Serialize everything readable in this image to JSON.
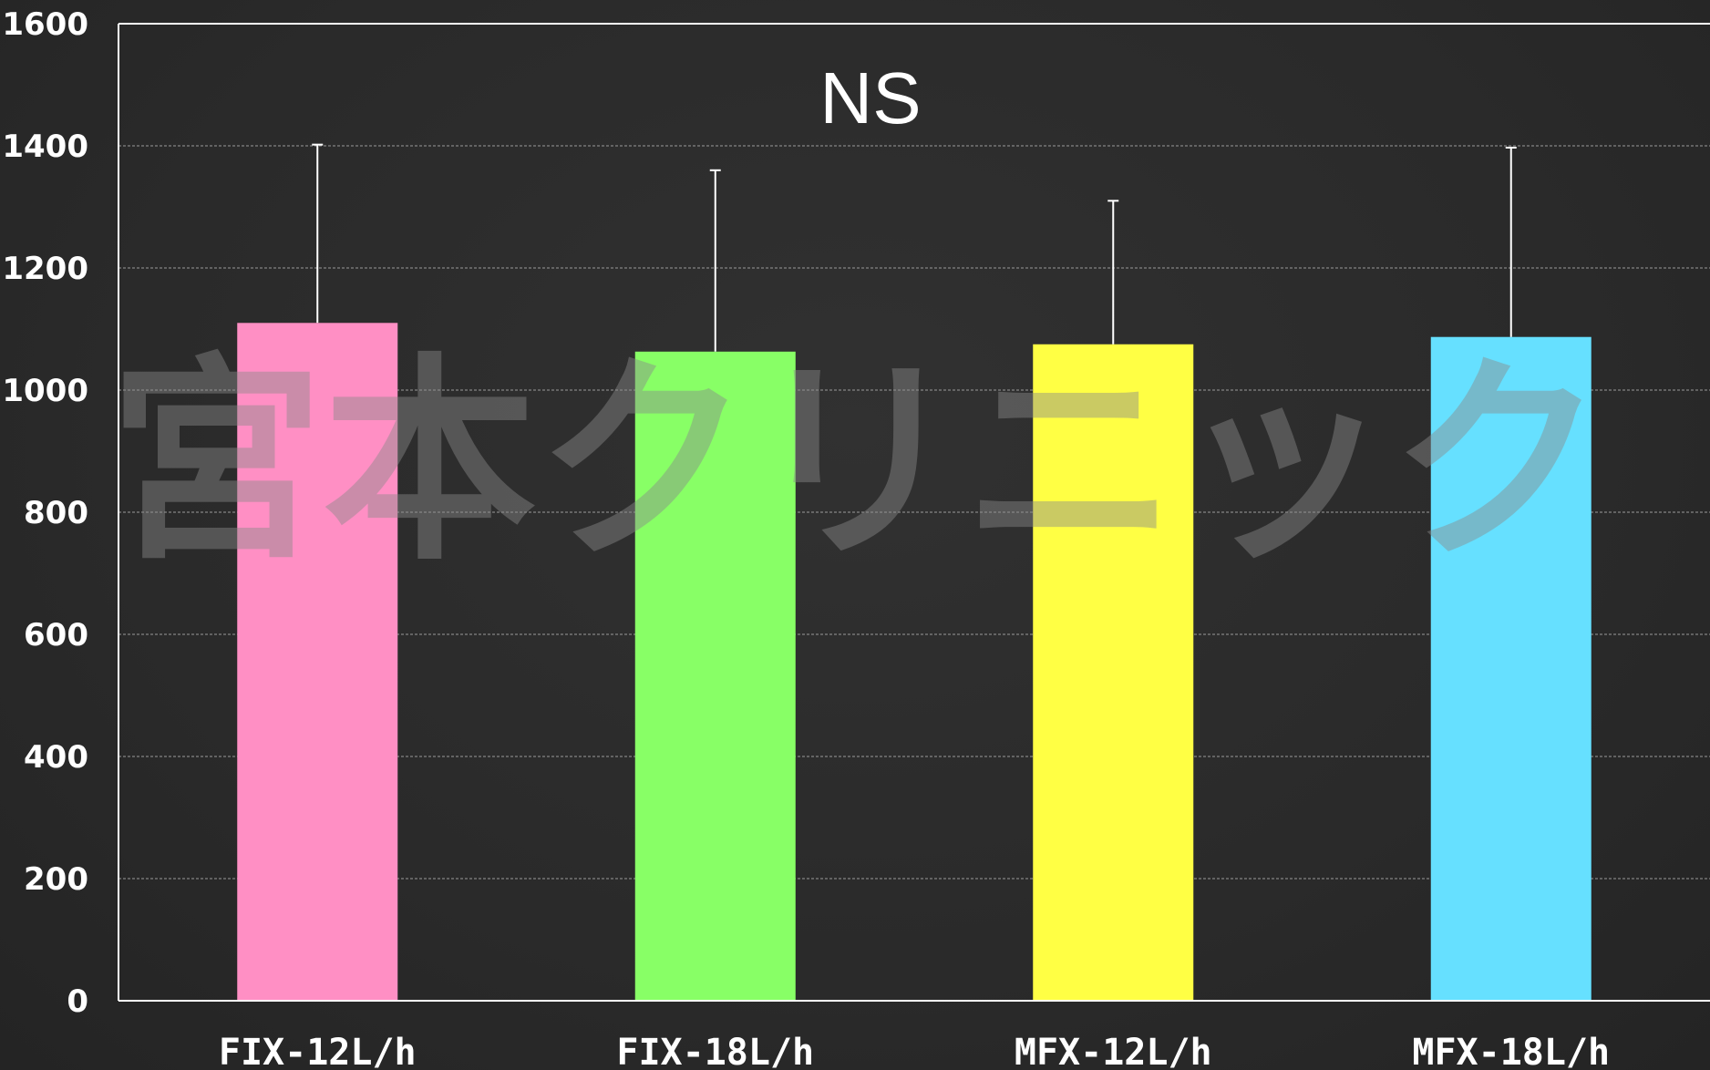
{
  "chart_data": {
    "type": "bar",
    "title": "",
    "xlabel": "",
    "ylabel": "",
    "categories": [
      "FIX-12L/h",
      "FIX-18L/h",
      "MFX-12L/h",
      "MFX-18L/h"
    ],
    "values": [
      1110,
      1063,
      1075,
      1087
    ],
    "error_upper": [
      1402,
      1360,
      1310,
      1397
    ],
    "colors": [
      "#ff8fc4",
      "#88ff66",
      "#ffff44",
      "#66e0ff"
    ],
    "ylim": [
      0,
      1600
    ],
    "yticks": [
      "0",
      "200",
      "400",
      "600",
      "800",
      "1000",
      "1200",
      "1400",
      "1600"
    ],
    "grid": true,
    "annotation": "NS"
  },
  "watermark": "宮本クリニック"
}
